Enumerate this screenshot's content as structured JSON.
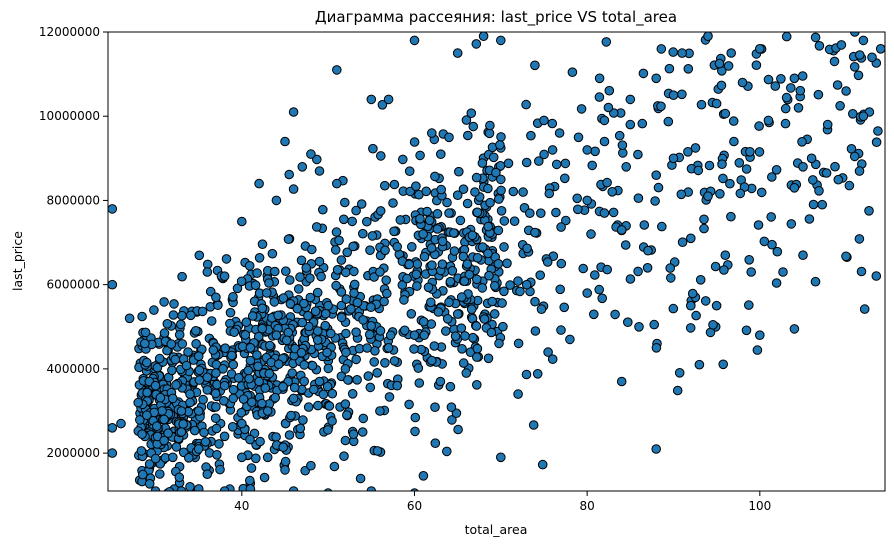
{
  "chart_data": {
    "type": "scatter",
    "title": "Диаграмма рассеяния: last_price VS total_area",
    "xlabel": "total_area",
    "ylabel": "last_price",
    "xlim": [
      24.5,
      114.5
    ],
    "ylim": [
      1100000,
      12000000
    ],
    "x_ticks": [
      40,
      60,
      80,
      100
    ],
    "y_ticks": [
      2000000,
      4000000,
      6000000,
      8000000,
      10000000,
      12000000
    ],
    "x_tick_labels": [
      "40",
      "60",
      "80",
      "100"
    ],
    "y_tick_labels": [
      "2000000",
      "4000000",
      "6000000",
      "8000000",
      "10000000",
      "12000000"
    ],
    "grid": false,
    "legend": "none",
    "marker_face_color": "#1f77b4",
    "marker_edge_color": "#000000",
    "trend": {
      "slope": 90000,
      "intercept": 450000
    },
    "spread": {
      "base": 600000,
      "per_unit": 22000
    },
    "sample_points": [
      [
        25,
        7800000
      ],
      [
        25,
        6000000
      ],
      [
        27,
        5200000
      ],
      [
        25,
        2600000
      ],
      [
        25,
        2000000
      ],
      [
        26,
        2700000
      ],
      [
        30,
        1100000
      ],
      [
        33,
        1100000
      ],
      [
        34,
        1200000
      ],
      [
        35,
        1150000
      ],
      [
        38,
        1100000
      ],
      [
        41,
        1150000
      ],
      [
        46,
        1100000
      ],
      [
        50,
        1050000
      ],
      [
        55,
        1100000
      ],
      [
        60,
        1050000
      ],
      [
        70,
        1900000
      ],
      [
        72,
        3400000
      ],
      [
        84,
        3700000
      ],
      [
        93,
        4100000
      ],
      [
        100,
        4800000
      ],
      [
        104,
        4950000
      ],
      [
        105,
        6700000
      ],
      [
        105,
        8800000
      ],
      [
        104,
        8300000
      ],
      [
        106,
        9000000
      ],
      [
        104,
        10900000
      ],
      [
        110,
        10600000
      ],
      [
        112,
        10000000
      ],
      [
        113,
        11400000
      ],
      [
        112,
        11800000
      ],
      [
        114,
        11600000
      ],
      [
        111,
        12000000
      ],
      [
        51,
        11100000
      ],
      [
        55,
        10400000
      ],
      [
        57,
        10400000
      ],
      [
        60,
        11800000
      ],
      [
        65,
        11500000
      ],
      [
        68,
        11900000
      ],
      [
        70,
        11800000
      ],
      [
        42,
        8400000
      ],
      [
        44,
        8000000
      ],
      [
        45,
        9400000
      ],
      [
        48,
        9100000
      ],
      [
        49,
        8700000
      ],
      [
        51,
        8400000
      ],
      [
        40,
        7500000
      ],
      [
        38,
        6200000
      ],
      [
        36,
        6300000
      ],
      [
        37,
        5700000
      ],
      [
        46,
        10100000
      ],
      [
        47,
        8800000
      ],
      [
        62,
        9600000
      ],
      [
        64,
        9500000
      ],
      [
        75,
        9900000
      ],
      [
        80,
        9200000
      ],
      [
        85,
        9800000
      ],
      [
        90,
        10500000
      ],
      [
        95,
        10300000
      ],
      [
        98,
        10800000
      ],
      [
        100,
        11600000
      ],
      [
        97,
        9400000
      ],
      [
        101,
        9900000
      ],
      [
        99,
        6300000
      ],
      [
        95,
        5500000
      ],
      [
        92,
        5500000
      ],
      [
        86,
        5000000
      ],
      [
        80,
        5800000
      ],
      [
        78,
        4700000
      ],
      [
        74,
        4900000
      ],
      [
        66,
        3900000
      ],
      [
        63,
        3700000
      ],
      [
        62,
        4200000
      ],
      [
        58,
        3600000
      ],
      [
        56,
        3000000
      ],
      [
        54,
        2500000
      ],
      [
        52,
        2300000
      ],
      [
        48,
        1700000
      ],
      [
        45,
        1600000
      ],
      [
        43,
        1900000
      ],
      [
        40,
        1900000
      ],
      [
        36,
        1500000
      ],
      [
        32,
        1900000
      ],
      [
        31,
        2300000
      ],
      [
        29,
        2900000
      ],
      [
        28,
        3200000
      ],
      [
        30,
        3600000
      ],
      [
        35,
        4300000
      ],
      [
        37,
        3900000
      ],
      [
        39,
        4100000
      ],
      [
        41,
        4200000
      ],
      [
        44,
        4800000
      ],
      [
        47,
        5100000
      ],
      [
        50,
        5500000
      ],
      [
        53,
        5800000
      ],
      [
        56,
        6300000
      ],
      [
        58,
        6900000
      ],
      [
        61,
        7200000
      ],
      [
        64,
        7700000
      ],
      [
        67,
        8200000
      ],
      [
        70,
        8500000
      ],
      [
        73,
        8900000
      ],
      [
        76,
        9200000
      ],
      [
        79,
        9500000
      ],
      [
        82,
        9900000
      ],
      [
        85,
        10400000
      ],
      [
        88,
        10900000
      ],
      [
        91,
        11500000
      ],
      [
        94,
        11900000
      ],
      [
        80,
        8000000
      ],
      [
        84,
        7300000
      ],
      [
        88,
        8600000
      ],
      [
        92,
        7100000
      ],
      [
        96,
        6700000
      ],
      [
        94,
        8100000
      ],
      [
        90,
        9000000
      ],
      [
        87,
        6400000
      ],
      [
        82,
        7700000
      ],
      [
        77,
        6500000
      ],
      [
        73,
        6000000
      ],
      [
        69,
        5600000
      ],
      [
        65,
        5300000
      ],
      [
        60,
        4800000
      ],
      [
        57,
        4500000
      ],
      [
        52,
        4000000
      ],
      [
        49,
        3700000
      ],
      [
        46,
        3300000
      ],
      [
        43,
        3000000
      ],
      [
        40,
        2700000
      ],
      [
        38,
        2400000
      ],
      [
        35,
        2100000
      ],
      [
        33,
        2500000
      ],
      [
        31,
        2800000
      ],
      [
        34,
        3200000
      ],
      [
        36,
        3500000
      ],
      [
        33,
        3000000
      ],
      [
        35,
        3000000
      ],
      [
        34,
        3400000
      ],
      [
        37,
        3100000
      ],
      [
        32,
        3300000
      ],
      [
        38,
        3600000
      ],
      [
        36,
        3800000
      ],
      [
        39,
        3300000
      ],
      [
        42,
        3700000
      ],
      [
        41,
        4500000
      ]
    ],
    "n_generated": 1500,
    "seed": 20240607
  }
}
